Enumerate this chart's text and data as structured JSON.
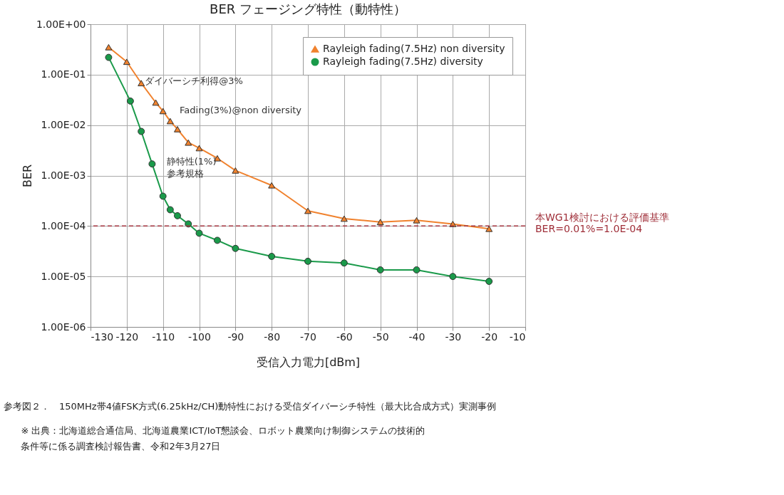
{
  "chart_data": {
    "type": "line",
    "title": "BER フェージング特性（動特性）",
    "xlabel": "受信入力電力[dBm]",
    "ylabel": "BER",
    "log": "y",
    "grid": true,
    "legend": "top right",
    "line_style": "solid",
    "xlim": [
      -130,
      -10
    ],
    "xticks": [
      -130,
      -120,
      -110,
      -100,
      -90,
      -80,
      -70,
      -60,
      -50,
      -40,
      -30,
      -20,
      -10
    ],
    "ylim": [
      1e-06,
      1
    ],
    "yticks": [
      {
        "value": 1,
        "label": "1.00E+00"
      },
      {
        "value": 0.1,
        "label": "1.00E-01"
      },
      {
        "value": 0.01,
        "label": "1.00E-02"
      },
      {
        "value": 0.001,
        "label": "1.00E-03"
      },
      {
        "value": 0.0001,
        "label": "1.00E-04"
      },
      {
        "value": 1e-05,
        "label": "1.00E-05"
      },
      {
        "value": 1e-06,
        "label": "1.00E-06"
      }
    ],
    "series": [
      {
        "name": "Rayleigh fading(7.5Hz) non diversity",
        "color": "#f0822e",
        "marker": "triangle",
        "x": [
          -125,
          -120,
          -116,
          -112,
          -110,
          -108,
          -106,
          -103,
          -100,
          -95,
          -90,
          -80,
          -70,
          -60,
          -50,
          -40,
          -30,
          -20
        ],
        "values": [
          0.35,
          0.18,
          0.068,
          0.028,
          0.019,
          0.012,
          0.0083,
          0.0045,
          0.0035,
          0.0022,
          0.00126,
          0.00064,
          0.0002,
          0.00014,
          0.00012,
          0.00013,
          0.00011,
          8.8e-05
        ]
      },
      {
        "name": "Rayleigh fading(7.5Hz) diversity",
        "color": "#1a9a4a",
        "marker": "circle",
        "x": [
          -125,
          -119,
          -116,
          -113,
          -110,
          -108,
          -106,
          -103,
          -100,
          -95,
          -90,
          -80,
          -70,
          -60,
          -50,
          -40,
          -30,
          -20
        ],
        "values": [
          0.22,
          0.03,
          0.0075,
          0.0017,
          0.00039,
          0.00021,
          0.00016,
          0.00011,
          7.2e-05,
          5.2e-05,
          3.6e-05,
          2.5e-05,
          2e-05,
          1.85e-05,
          1.35e-05,
          1.35e-05,
          1e-05,
          8e-06
        ]
      }
    ],
    "ref_lines": [
      {
        "axis": "y",
        "value": 0.0001,
        "label": "本WG1検討における評価基準\nBER=0.01%=1.0E-04",
        "color": "#a0303a",
        "line_style": "dashed"
      }
    ],
    "annotations": [
      {
        "text": "ダイバーシチ利得@3%",
        "x": -115,
        "y": 0.075
      },
      "Fading(3%)@non diversity",
      "静特性(1%)\n参考規格",
      "参考図２．　150MHz帯4値FSK方式(6.25kHz/CH)動特性における受信ダイバーシチ特性（最大比合成方式）実測事例",
      "※ 出典：北海道総合通信局、北海道農業ICT/IoT懇談会、ロボット農業向け制御システムの技術的条件等に係る調査検討報告書、令和2年3月27日"
    ]
  }
}
